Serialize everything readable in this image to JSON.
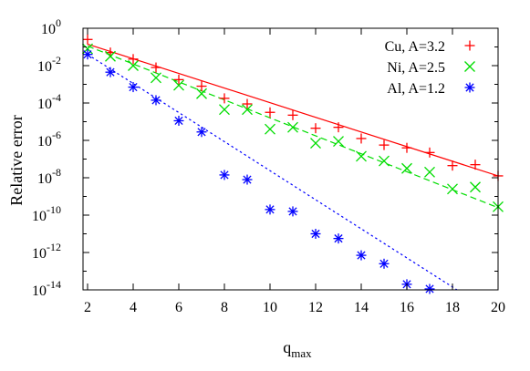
{
  "chart_data": {
    "type": "scatter",
    "title": "",
    "xlabel": {
      "main": "q",
      "sub": "max"
    },
    "ylabel": "Relative error",
    "xlim": [
      1.8,
      20
    ],
    "ylim_log10": [
      -14,
      0
    ],
    "yscale": "log",
    "grid": false,
    "legend_position": "top-right",
    "x_ticks": [
      2,
      4,
      6,
      8,
      10,
      12,
      14,
      16,
      18,
      20
    ],
    "y_ticks": [
      {
        "base": "10",
        "exp": "0"
      },
      {
        "base": "10",
        "exp": "-2"
      },
      {
        "base": "10",
        "exp": "-4"
      },
      {
        "base": "10",
        "exp": "-6"
      },
      {
        "base": "10",
        "exp": "-8"
      },
      {
        "base": "10",
        "exp": "-10"
      },
      {
        "base": "10",
        "exp": "-12"
      },
      {
        "base": "10",
        "exp": "-14"
      }
    ],
    "series": [
      {
        "name": "Cu, A=3.2",
        "color": "#ff0000",
        "marker": "plus",
        "line": "solid",
        "fit_endpoints": {
          "x": [
            2,
            20
          ],
          "log10y": [
            -0.85,
            -7.9
          ]
        },
        "x": [
          2,
          3,
          4,
          5,
          6,
          7,
          8,
          9,
          10,
          11,
          12,
          13,
          14,
          15,
          16,
          17,
          18,
          19,
          20
        ],
        "log10y": [
          -0.6,
          -1.3,
          -1.65,
          -2.1,
          -2.75,
          -3.1,
          -3.75,
          -4.05,
          -4.5,
          -4.65,
          -5.35,
          -5.3,
          -5.9,
          -6.25,
          -6.4,
          -6.65,
          -7.35,
          -7.3,
          -7.9
        ]
      },
      {
        "name": "Ni, A=2.5",
        "color": "#00dd00",
        "marker": "x",
        "line": "dashed",
        "fit_endpoints": {
          "x": [
            2,
            20
          ],
          "log10y": [
            -0.95,
            -9.6
          ]
        },
        "x": [
          2,
          3,
          4,
          5,
          6,
          7,
          8,
          9,
          10,
          11,
          12,
          13,
          14,
          15,
          16,
          17,
          18,
          19,
          20
        ],
        "log10y": [
          -1.1,
          -1.5,
          -2.0,
          -2.65,
          -3.05,
          -3.5,
          -4.35,
          -4.35,
          -5.4,
          -5.3,
          -6.15,
          -6.05,
          -6.85,
          -7.1,
          -7.5,
          -7.7,
          -8.6,
          -8.5,
          -9.55
        ]
      },
      {
        "name": "Al, A=1.2",
        "color": "#0000ff",
        "marker": "asterisk",
        "line": "dotted",
        "fit_endpoints": {
          "x": [
            2,
            18.2
          ],
          "log10y": [
            -1.4,
            -14
          ]
        },
        "x": [
          2,
          3,
          4,
          5,
          6,
          7,
          8,
          9,
          10,
          11,
          12,
          13,
          14,
          15,
          16,
          17
        ],
        "log10y": [
          -1.4,
          -2.35,
          -3.15,
          -3.85,
          -4.95,
          -5.55,
          -7.85,
          -8.1,
          -9.7,
          -9.8,
          -11.0,
          -11.25,
          -12.15,
          -12.6,
          -13.7,
          -13.95
        ]
      }
    ]
  }
}
